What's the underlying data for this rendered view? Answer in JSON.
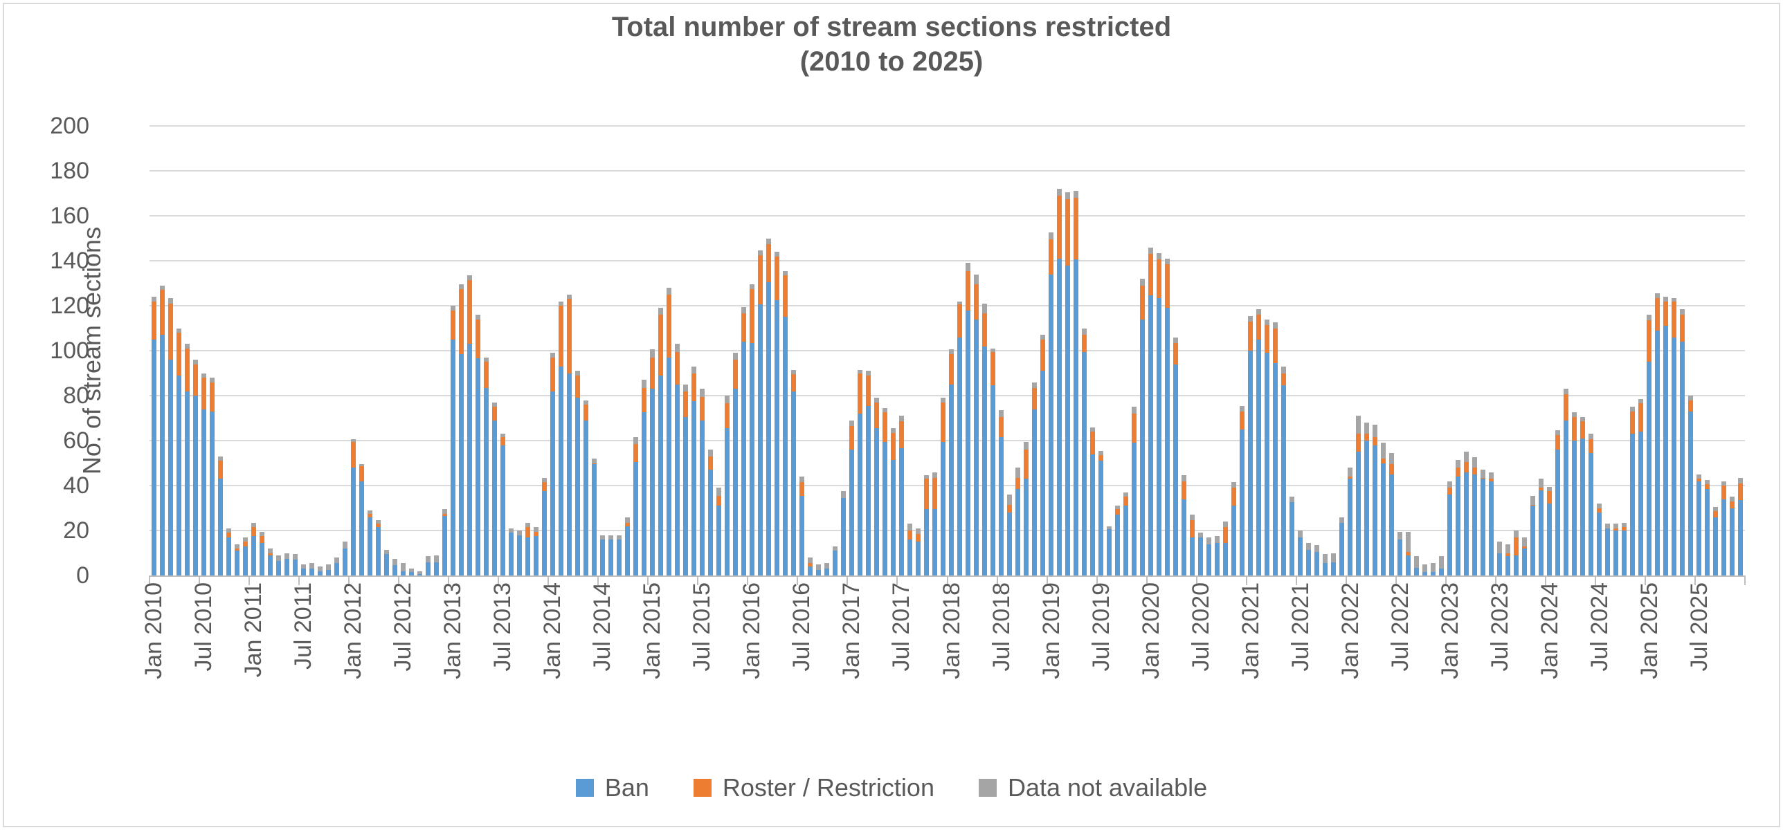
{
  "title": {
    "line1": "Total number of stream sections restricted",
    "line2": "(2010 to 2025)"
  },
  "y_axis": {
    "title": "No. of stream sections",
    "tick_labels": [
      "200",
      "180",
      "160",
      "140",
      "120",
      "100",
      "80",
      "60",
      "40",
      "20",
      "0"
    ],
    "min": 0,
    "max": 200,
    "step": 20
  },
  "x_axis": {
    "tick_labels": [
      "Jan 2010",
      "Jul 2010",
      "Jan 2011",
      "Jul 2011",
      "Jan 2012",
      "Jul 2012",
      "Jan 2013",
      "Jul 2013",
      "Jan 2014",
      "Jul 2014",
      "Jan 2015",
      "Jul 2015",
      "Jan 2016",
      "Jul 2016",
      "Jan 2017",
      "Jul 2017",
      "Jan 2018",
      "Jul 2018",
      "Jan 2019",
      "Jul 2019",
      "Jan 2020",
      "Jul 2020",
      "Jan 2021",
      "Jul 2021",
      "Jan 2022",
      "Jul 2022",
      "Jan 2023",
      "Jul 2023",
      "Jan 2024",
      "Jul 2024",
      "Jan 2025",
      "Jul 2025"
    ]
  },
  "legend": {
    "items": [
      {
        "label": "Ban",
        "color": "#5B9BD5"
      },
      {
        "label": "Roster / Restriction",
        "color": "#ED7D31"
      },
      {
        "label": "Data not available",
        "color": "#A5A5A5"
      }
    ]
  },
  "colors": {
    "text": "#595959",
    "gridline": "#D9D9D9",
    "axis_line": "#BFBFBF",
    "ban": "#5B9BD5",
    "roster": "#ED7D31",
    "not_available": "#A5A5A5"
  },
  "chart_data": {
    "type": "bar",
    "stacked": true,
    "title": "Total number of stream sections restricted (2010 to 2025)",
    "ylabel": "No. of stream sections",
    "xlabel": "",
    "ylim": [
      0,
      200
    ],
    "grid": true,
    "legend_position": "bottom",
    "x_start": "Jan 2010",
    "x_end": "Dec 2025",
    "frequency": "monthly",
    "n_points": 192,
    "series": [
      {
        "name": "Ban",
        "color": "#5B9BD5",
        "values": [
          105,
          107,
          96,
          89,
          82,
          80,
          74,
          73,
          43,
          17,
          11,
          13,
          17.5,
          14.5,
          9,
          6.5,
          7.5,
          7,
          3,
          3,
          2,
          2.5,
          5.5,
          12,
          48,
          42,
          26,
          21.5,
          9.5,
          4.5,
          2,
          1.5,
          0.5,
          6,
          6,
          26.5,
          105,
          98.5,
          103,
          96.5,
          83.5,
          69,
          58,
          19,
          18,
          17,
          17.5,
          37.5,
          82,
          93,
          90,
          79,
          69,
          49.5,
          16,
          16,
          16,
          22,
          50.5,
          72.5,
          83,
          89,
          97,
          85,
          70.5,
          77.5,
          69,
          47,
          31,
          65.5,
          83,
          104,
          103.5,
          120.5,
          130.5,
          122.5,
          115,
          82,
          35.5,
          4,
          2.5,
          3,
          11,
          34.5,
          56,
          72,
          75.5,
          65.5,
          59.5,
          51.5,
          56.5,
          16,
          15,
          29.5,
          29.5,
          59.5,
          85,
          106,
          118,
          114,
          102,
          84.5,
          61.5,
          28,
          38.5,
          43,
          74,
          91,
          134,
          141,
          138,
          140.5,
          99.5,
          54,
          51,
          20.5,
          27,
          31,
          59,
          114,
          124.5,
          123.5,
          119,
          94,
          34,
          17,
          17,
          14,
          14.5,
          14.5,
          31,
          65,
          100,
          105,
          99,
          94.5,
          84.5,
          32.5,
          17,
          11.5,
          10.5,
          5.5,
          6,
          23.5,
          43,
          55,
          60,
          58,
          50,
          45,
          16,
          9,
          3.5,
          1.5,
          1.5,
          3,
          36,
          44,
          46,
          45,
          43,
          42,
          10,
          8.5,
          9,
          12,
          31,
          38,
          32,
          56,
          69,
          60,
          61,
          54.5,
          28,
          21,
          20,
          20,
          63,
          64,
          95,
          109,
          111,
          106,
          104,
          73,
          42,
          38.5,
          26,
          34,
          30,
          33.5
        ]
      },
      {
        "name": "Roster / Restriction",
        "color": "#ED7D31",
        "values": [
          17,
          20,
          25,
          19,
          19,
          14,
          14,
          13,
          8,
          2,
          1,
          2,
          4,
          3,
          1,
          0,
          0,
          0,
          0,
          0,
          0,
          0,
          0,
          0,
          11.5,
          6.5,
          1.5,
          1.5,
          0,
          0,
          0,
          0,
          0,
          0,
          0,
          1,
          13,
          29,
          28.5,
          17.5,
          11.5,
          6,
          3.5,
          0,
          0,
          4.5,
          2,
          4,
          15,
          27,
          33,
          10,
          7,
          0.5,
          0,
          0,
          0,
          1.5,
          8,
          11,
          14,
          27,
          28,
          14.5,
          11.5,
          12.5,
          10.5,
          6,
          4.5,
          11,
          13,
          12.5,
          24,
          22,
          17,
          19.5,
          18.5,
          7.5,
          6,
          1.5,
          0,
          0,
          0,
          0,
          10.5,
          18,
          13.5,
          11.5,
          13,
          12,
          12,
          4,
          3.5,
          13.5,
          14,
          17.5,
          13.5,
          14.5,
          17.5,
          15.5,
          14.5,
          15,
          9,
          3.5,
          5,
          13,
          9.5,
          14,
          15.5,
          28,
          29.5,
          27.5,
          7.5,
          10,
          2.5,
          0,
          2.5,
          4,
          13,
          15,
          18.5,
          17,
          19.5,
          9.5,
          8,
          7.5,
          0,
          0,
          0,
          7,
          8,
          8,
          13,
          11,
          12.5,
          15.5,
          5.5,
          0,
          0,
          0,
          0,
          0,
          0,
          0,
          1,
          8,
          3,
          3.5,
          2,
          4.5,
          0,
          1.5,
          0,
          0,
          0,
          0,
          3,
          4,
          4.5,
          3,
          0.5,
          1,
          0,
          1.5,
          8,
          1,
          0.5,
          1,
          5.5,
          6.5,
          11.5,
          10.5,
          7.5,
          6,
          2,
          0,
          1,
          1.5,
          10,
          12.5,
          18.5,
          14.5,
          11,
          16,
          12,
          5,
          1,
          2,
          2.5,
          6,
          3,
          7.5
        ]
      },
      {
        "name": "Data not available",
        "color": "#A5A5A5",
        "values": [
          2,
          2,
          2.5,
          2,
          2,
          2,
          2,
          2,
          2,
          2,
          2,
          2,
          2,
          2,
          2,
          2.5,
          2.5,
          2.5,
          2,
          2.5,
          2,
          2.5,
          2.5,
          3,
          1,
          1,
          1.5,
          1.5,
          2,
          3,
          3.5,
          1.5,
          1.5,
          2.5,
          3,
          2,
          2,
          2,
          2,
          2,
          2,
          2,
          1.5,
          2,
          2,
          2,
          2,
          2,
          2,
          2,
          2,
          2,
          2,
          2,
          2,
          2,
          2,
          2.5,
          3,
          3.5,
          3.5,
          3,
          3,
          3.5,
          3,
          3,
          3.5,
          3,
          3.5,
          3.5,
          3,
          3,
          2,
          2,
          2.5,
          2,
          2,
          2,
          2.5,
          2.5,
          2.5,
          2.5,
          2,
          3,
          2.5,
          1.5,
          2,
          2,
          2,
          2,
          2.5,
          3,
          2.5,
          1.5,
          2.5,
          2,
          2,
          1.5,
          3.5,
          4.5,
          4.5,
          1.5,
          3,
          4.5,
          4.5,
          3.5,
          2.5,
          2,
          3,
          3,
          3,
          3,
          3,
          2,
          2,
          1.5,
          1.5,
          2,
          3,
          3,
          3,
          3,
          2.5,
          2.5,
          2.5,
          2.5,
          2,
          3,
          3,
          2.5,
          2.5,
          2.5,
          2.5,
          2.5,
          2.5,
          2.5,
          3,
          2.5,
          3,
          3,
          3,
          4,
          4,
          2.5,
          4,
          8,
          5,
          5.5,
          7,
          5,
          3.5,
          9,
          5,
          3.5,
          4,
          5.5,
          3,
          3.5,
          4.5,
          4.5,
          3.5,
          3,
          5,
          4,
          3,
          4,
          4,
          4,
          2,
          2,
          2.5,
          2,
          2,
          2.5,
          2,
          2,
          2,
          2,
          2,
          2,
          2.5,
          2,
          2,
          1.5,
          2.5,
          2,
          2,
          2,
          2,
          2,
          2,
          2.5
        ]
      }
    ]
  }
}
